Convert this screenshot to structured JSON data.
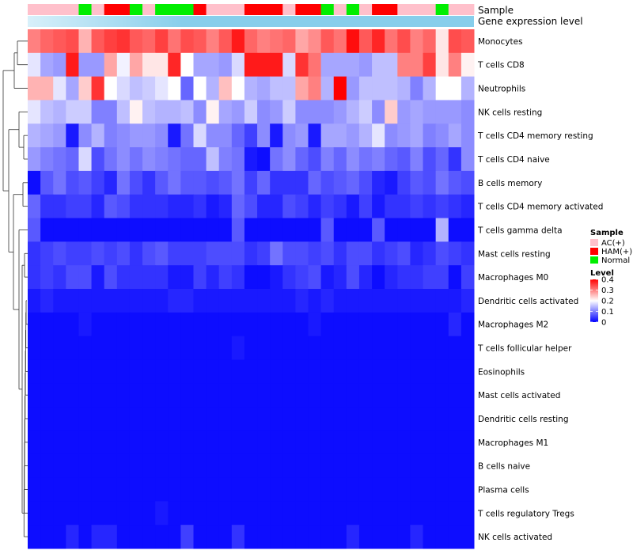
{
  "chart_data": {
    "type": "heatmap",
    "title": "",
    "annotation_labels": {
      "sample": "Sample",
      "expression": "Gene expression level"
    },
    "colors": {
      "low": "#0000ff",
      "mid": "#ffffff",
      "high": "#ff0000",
      "ac": "#ffc0cb",
      "ham": "#ff0000",
      "normal": "#00ee00",
      "expression_bar": "#87ceeb"
    },
    "sample_legend": {
      "title": "Sample",
      "entries": [
        {
          "key": "AC",
          "label": "AC(+)"
        },
        {
          "key": "HAM",
          "label": "HAM(+)"
        },
        {
          "key": "Normal",
          "label": "Normal"
        }
      ]
    },
    "level_legend": {
      "title": "Level",
      "min": 0,
      "max": 0.4,
      "ticks": [
        {
          "value": 0.4,
          "label": "0.4"
        },
        {
          "value": 0.3,
          "label": "0.3"
        },
        {
          "value": 0.2,
          "label": "0.2"
        },
        {
          "value": 0.1,
          "label": "0.1"
        },
        {
          "value": 0,
          "label": "0"
        }
      ]
    },
    "samples": [
      "AC",
      "AC",
      "AC",
      "AC",
      "Normal",
      "AC",
      "HAM",
      "HAM",
      "Normal",
      "AC",
      "Normal",
      "Normal",
      "Normal",
      "HAM",
      "AC",
      "AC",
      "AC",
      "HAM",
      "HAM",
      "HAM",
      "AC",
      "HAM",
      "HAM",
      "Normal",
      "AC",
      "Normal",
      "AC",
      "HAM",
      "HAM",
      "AC",
      "AC",
      "AC",
      "Normal",
      "AC",
      "AC"
    ],
    "rows": [
      {
        "label": "Monocytes",
        "values": [
          0.3,
          0.32,
          0.33,
          0.34,
          0.26,
          0.33,
          0.35,
          0.36,
          0.33,
          0.32,
          0.35,
          0.31,
          0.34,
          0.33,
          0.3,
          0.33,
          0.38,
          0.32,
          0.3,
          0.31,
          0.32,
          0.27,
          0.29,
          0.33,
          0.31,
          0.39,
          0.33,
          0.37,
          0.31,
          0.34,
          0.3,
          0.32,
          0.22,
          0.34,
          0.33
        ]
      },
      {
        "label": "T cells CD8",
        "values": [
          0.18,
          0.13,
          0.12,
          0.38,
          0.12,
          0.12,
          0.27,
          0.19,
          0.27,
          0.22,
          0.22,
          0.37,
          0.2,
          0.13,
          0.13,
          0.12,
          0.17,
          0.38,
          0.38,
          0.38,
          0.17,
          0.36,
          0.31,
          0.13,
          0.13,
          0.13,
          0.12,
          0.15,
          0.15,
          0.3,
          0.3,
          0.35,
          0.22,
          0.3,
          0.21
        ]
      },
      {
        "label": "Neutrophils",
        "values": [
          0.26,
          0.26,
          0.18,
          0.13,
          0.24,
          0.36,
          0.2,
          0.17,
          0.15,
          0.16,
          0.18,
          0.2,
          0.08,
          0.2,
          0.14,
          0.25,
          0.2,
          0.14,
          0.13,
          0.15,
          0.15,
          0.27,
          0.3,
          0.14,
          0.4,
          0.12,
          0.15,
          0.15,
          0.15,
          0.14,
          0.1,
          0.14,
          0.2,
          0.2,
          0.14
        ]
      },
      {
        "label": "NK cells resting",
        "values": [
          0.18,
          0.15,
          0.14,
          0.16,
          0.16,
          0.1,
          0.1,
          0.15,
          0.21,
          0.15,
          0.14,
          0.14,
          0.15,
          0.11,
          0.21,
          0.13,
          0.12,
          0.16,
          0.11,
          0.12,
          0.16,
          0.11,
          0.11,
          0.11,
          0.12,
          0.14,
          0.16,
          0.11,
          0.24,
          0.12,
          0.13,
          0.12,
          0.12,
          0.12,
          0.11
        ]
      },
      {
        "label": "T cells CD4 memory resting",
        "values": [
          0.14,
          0.13,
          0.12,
          0.02,
          0.11,
          0.14,
          0.1,
          0.11,
          0.12,
          0.12,
          0.11,
          0.02,
          0.09,
          0.17,
          0.11,
          0.11,
          0.08,
          0.05,
          0.11,
          0.02,
          0.11,
          0.12,
          0.02,
          0.13,
          0.13,
          0.12,
          0.14,
          0.18,
          0.11,
          0.12,
          0.13,
          0.1,
          0.11,
          0.13,
          0.11
        ]
      },
      {
        "label": "T cells CD4 naive",
        "values": [
          0.12,
          0.1,
          0.09,
          0.08,
          0.17,
          0.06,
          0.09,
          0.11,
          0.09,
          0.11,
          0.1,
          0.09,
          0.08,
          0.08,
          0.15,
          0.1,
          0.09,
          0.02,
          0.01,
          0.09,
          0.11,
          0.08,
          0.06,
          0.1,
          0.08,
          0.11,
          0.09,
          0.1,
          0.08,
          0.07,
          0.1,
          0.06,
          0.08,
          0.04,
          0.11
        ]
      },
      {
        "label": "B cells memory",
        "values": [
          0.01,
          0.07,
          0.09,
          0.06,
          0.07,
          0.05,
          0.03,
          0.09,
          0.06,
          0.04,
          0.07,
          0.09,
          0.07,
          0.07,
          0.06,
          0.07,
          0.09,
          0.05,
          0.08,
          0.04,
          0.04,
          0.04,
          0.08,
          0.06,
          0.07,
          0.08,
          0.06,
          0.03,
          0.02,
          0.05,
          0.07,
          0.06,
          0.09,
          0.07,
          0.06
        ]
      },
      {
        "label": "T cells CD4 memory activated",
        "values": [
          0.08,
          0.04,
          0.04,
          0.05,
          0.05,
          0.03,
          0.07,
          0.06,
          0.04,
          0.04,
          0.04,
          0.03,
          0.03,
          0.04,
          0.02,
          0.03,
          0.08,
          0.06,
          0.03,
          0.03,
          0.06,
          0.05,
          0.03,
          0.05,
          0.04,
          0.02,
          0.05,
          0.02,
          0.04,
          0.04,
          0.05,
          0.04,
          0.05,
          0.04,
          0.03
        ]
      },
      {
        "label": "T cells gamma delta",
        "values": [
          0.07,
          0.01,
          0.01,
          0.01,
          0.01,
          0.01,
          0.01,
          0.01,
          0.01,
          0.01,
          0.01,
          0.01,
          0.01,
          0.01,
          0.01,
          0.01,
          0.07,
          0.01,
          0.01,
          0.01,
          0.01,
          0.01,
          0.01,
          0.07,
          0.01,
          0.01,
          0.01,
          0.07,
          0.01,
          0.01,
          0.01,
          0.01,
          0.14,
          0.01,
          0.01
        ]
      },
      {
        "label": "Mast cells resting",
        "values": [
          0.04,
          0.05,
          0.06,
          0.05,
          0.05,
          0.06,
          0.05,
          0.06,
          0.04,
          0.06,
          0.07,
          0.05,
          0.05,
          0.05,
          0.06,
          0.06,
          0.06,
          0.04,
          0.05,
          0.09,
          0.06,
          0.06,
          0.05,
          0.06,
          0.04,
          0.06,
          0.06,
          0.04,
          0.05,
          0.06,
          0.03,
          0.04,
          0.06,
          0.05,
          0.04
        ]
      },
      {
        "label": "Macrophages M0",
        "values": [
          0.04,
          0.05,
          0.04,
          0.06,
          0.06,
          0.02,
          0.06,
          0.04,
          0.04,
          0.04,
          0.04,
          0.02,
          0.02,
          0.05,
          0.03,
          0.05,
          0.04,
          0.01,
          0.01,
          0.02,
          0.04,
          0.05,
          0.06,
          0.02,
          0.03,
          0.06,
          0.03,
          0.01,
          0.03,
          0.04,
          0.04,
          0.05,
          0.05,
          0.01,
          0.05
        ]
      },
      {
        "label": "Dendritic cells activated",
        "values": [
          0.02,
          0.03,
          0.02,
          0.02,
          0.02,
          0.02,
          0.02,
          0.02,
          0.02,
          0.02,
          0.02,
          0.03,
          0.03,
          0.02,
          0.02,
          0.02,
          0.02,
          0.02,
          0.02,
          0.02,
          0.02,
          0.03,
          0.02,
          0.03,
          0.02,
          0.02,
          0.02,
          0.02,
          0.02,
          0.02,
          0.02,
          0.02,
          0.02,
          0.02,
          0.03
        ]
      },
      {
        "label": "Macrophages M2",
        "values": [
          0.01,
          0.01,
          0.01,
          0.01,
          0.02,
          0.01,
          0.01,
          0.01,
          0.01,
          0.01,
          0.01,
          0.01,
          0.01,
          0.01,
          0.01,
          0.01,
          0.01,
          0.01,
          0.01,
          0.01,
          0.01,
          0.01,
          0.02,
          0.01,
          0.01,
          0.01,
          0.01,
          0.01,
          0.01,
          0.01,
          0.01,
          0.01,
          0.01,
          0.03,
          0.01
        ]
      },
      {
        "label": "T cells follicular helper",
        "values": [
          0.01,
          0.01,
          0.01,
          0.01,
          0.01,
          0.01,
          0.01,
          0.01,
          0.01,
          0.01,
          0.01,
          0.01,
          0.01,
          0.01,
          0.01,
          0.01,
          0.02,
          0.01,
          0.01,
          0.01,
          0.01,
          0.01,
          0.01,
          0.01,
          0.01,
          0.01,
          0.01,
          0.01,
          0.01,
          0.01,
          0.01,
          0.01,
          0.01,
          0.01,
          0.01
        ]
      },
      {
        "label": "Eosinophils",
        "values": [
          0.01,
          0.01,
          0.01,
          0.01,
          0.01,
          0.01,
          0.01,
          0.01,
          0.01,
          0.01,
          0.01,
          0.01,
          0.01,
          0.01,
          0.01,
          0.01,
          0.01,
          0.01,
          0.01,
          0.01,
          0.01,
          0.01,
          0.01,
          0.01,
          0.01,
          0.01,
          0.01,
          0.01,
          0.01,
          0.01,
          0.01,
          0.01,
          0.01,
          0.01,
          0.01
        ]
      },
      {
        "label": "Mast cells activated",
        "values": [
          0.01,
          0.01,
          0.01,
          0.01,
          0.01,
          0.01,
          0.01,
          0.01,
          0.01,
          0.01,
          0.01,
          0.01,
          0.01,
          0.01,
          0.01,
          0.01,
          0.01,
          0.01,
          0.01,
          0.01,
          0.01,
          0.01,
          0.01,
          0.01,
          0.01,
          0.01,
          0.01,
          0.01,
          0.01,
          0.01,
          0.01,
          0.01,
          0.01,
          0.01,
          0.01
        ]
      },
      {
        "label": "Dendritic cells resting",
        "values": [
          0.01,
          0.01,
          0.01,
          0.01,
          0.01,
          0.01,
          0.01,
          0.01,
          0.01,
          0.01,
          0.01,
          0.01,
          0.01,
          0.01,
          0.01,
          0.01,
          0.01,
          0.01,
          0.01,
          0.01,
          0.01,
          0.01,
          0.01,
          0.01,
          0.01,
          0.01,
          0.01,
          0.01,
          0.01,
          0.01,
          0.01,
          0.01,
          0.01,
          0.01,
          0.01
        ]
      },
      {
        "label": "Macrophages M1",
        "values": [
          0.01,
          0.01,
          0.01,
          0.01,
          0.01,
          0.01,
          0.01,
          0.01,
          0.01,
          0.01,
          0.01,
          0.01,
          0.01,
          0.01,
          0.01,
          0.01,
          0.01,
          0.01,
          0.01,
          0.01,
          0.01,
          0.01,
          0.01,
          0.01,
          0.01,
          0.01,
          0.01,
          0.01,
          0.01,
          0.01,
          0.01,
          0.01,
          0.01,
          0.01,
          0.01
        ]
      },
      {
        "label": "B cells naive",
        "values": [
          0.01,
          0.01,
          0.01,
          0.01,
          0.01,
          0.01,
          0.01,
          0.01,
          0.01,
          0.01,
          0.01,
          0.01,
          0.01,
          0.01,
          0.01,
          0.01,
          0.01,
          0.01,
          0.01,
          0.01,
          0.01,
          0.01,
          0.01,
          0.01,
          0.01,
          0.01,
          0.01,
          0.01,
          0.01,
          0.01,
          0.01,
          0.01,
          0.01,
          0.01,
          0.01
        ]
      },
      {
        "label": "Plasma cells",
        "values": [
          0.01,
          0.01,
          0.01,
          0.01,
          0.01,
          0.01,
          0.01,
          0.01,
          0.01,
          0.01,
          0.01,
          0.01,
          0.01,
          0.01,
          0.01,
          0.01,
          0.01,
          0.01,
          0.01,
          0.01,
          0.01,
          0.01,
          0.01,
          0.01,
          0.01,
          0.01,
          0.01,
          0.01,
          0.01,
          0.01,
          0.01,
          0.01,
          0.01,
          0.01,
          0.01
        ]
      },
      {
        "label": "T cells regulatory  Tregs",
        "values": [
          0.01,
          0.01,
          0.01,
          0.01,
          0.01,
          0.01,
          0.01,
          0.01,
          0.01,
          0.01,
          0.02,
          0.01,
          0.01,
          0.01,
          0.01,
          0.01,
          0.01,
          0.01,
          0.01,
          0.01,
          0.01,
          0.01,
          0.01,
          0.01,
          0.01,
          0.01,
          0.01,
          0.01,
          0.01,
          0.01,
          0.01,
          0.01,
          0.01,
          0.01,
          0.01
        ]
      },
      {
        "label": "NK cells activated",
        "values": [
          0.01,
          0.01,
          0.01,
          0.03,
          0.01,
          0.03,
          0.03,
          0.01,
          0.01,
          0.01,
          0.01,
          0.01,
          0.05,
          0.01,
          0.01,
          0.01,
          0.04,
          0.01,
          0.01,
          0.01,
          0.01,
          0.01,
          0.01,
          0.01,
          0.01,
          0.03,
          0.01,
          0.01,
          0.01,
          0.01,
          0.03,
          0.01,
          0.01,
          0.01,
          0.01
        ]
      }
    ]
  }
}
